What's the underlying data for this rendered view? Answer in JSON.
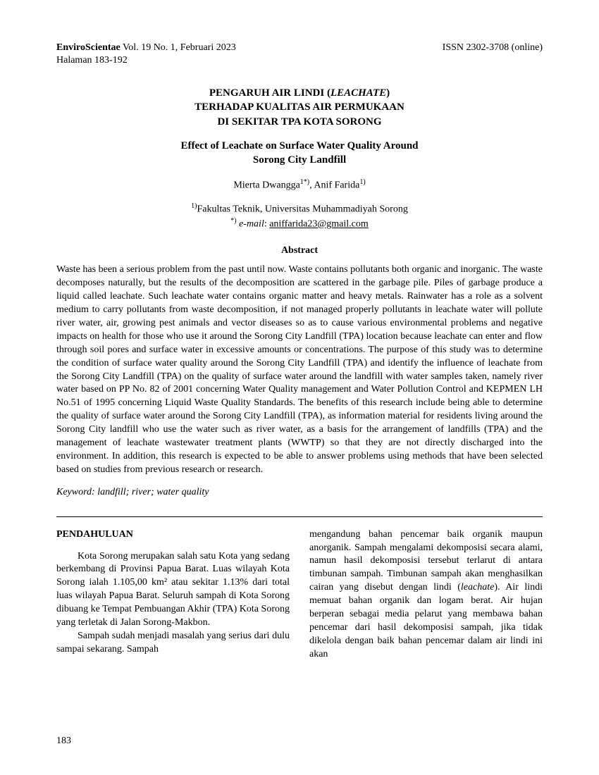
{
  "header": {
    "journal_bold": "EnviroScientae",
    "journal_rest": " Vol. 19 No. 1, Februari 2023",
    "issn": "ISSN 2302-3708 (online)",
    "pages": "Halaman 183-192"
  },
  "title": {
    "line1_a": "PENGARUH AIR LINDI (",
    "line1_b": "LEACHATE",
    "line1_c": ")",
    "line2": "TERHADAP KUALITAS AIR PERMUKAAN",
    "line3": "DI SEKITAR TPA KOTA SORONG",
    "sub1": "Effect of Leachate on Surface Water Quality Around",
    "sub2": "Sorong City Landfill"
  },
  "authors": {
    "a1": "Mierta Dwangga",
    "a1_sup": "1*)",
    "sep": ", ",
    "a2": "Anif Farida",
    "a2_sup": "1)"
  },
  "affiliation": {
    "sup": "1)",
    "text": "Fakultas Teknik, Universitas Muhammadiyah Sorong",
    "corr_sup": "*)",
    "email_label": " e-mail",
    "email_sep": ": ",
    "email": "aniffarida23@gmail.com"
  },
  "abstract": {
    "heading": "Abstract",
    "body": "Waste has been a serious problem from the past until now. Waste contains pollutants both organic and inorganic. The waste decomposes naturally, but the results of the decomposition are scattered in the garbage pile. Piles of garbage produce a liquid called leachate. Such leachate water contains organic matter and heavy metals. Rainwater has a role as a solvent medium to carry pollutants from waste decomposition, if not managed properly pollutants in leachate water will pollute river water, air, growing pest animals and vector diseases so as to cause various environmental problems and negative impacts on health for those who use it around the Sorong City Landfill (TPA) location because leachate can enter and flow through soil pores and surface water in excessive amounts or concentrations. The purpose of this study was to determine the condition of surface water quality around the Sorong City Landfill (TPA) and identify the influence of leachate from the Sorong City Landfill (TPA) on the quality of surface water around the landfill with water samples taken, namely river water based on PP No. 82 of 2001 concerning Water Quality management and Water Pollution Control and KEPMEN LH No.51 of 1995 concerning Liquid Waste Quality Standards. The benefits of this research include being able to determine the quality of surface water around the Sorong City Landfill (TPA), as information material for residents living around the Sorong City landfill who use the water such as river water, as a basis for the arrangement of landfills (TPA) and the management of leachate wastewater treatment plants (WWTP) so that they are not directly discharged into the environment. In addition, this research is expected to be able to answer problems using methods that have been selected based on studies from previous research or research."
  },
  "keywords": {
    "label": "Keyword: ",
    "text": "landfill; river; water quality"
  },
  "body": {
    "section_heading": "PENDAHULUAN",
    "col1_p1": "Kota Sorong merupakan salah satu Kota yang sedang berkembang di Provinsi Papua Barat. Luas wilayah Kota Sorong ialah 1.105,00 km² atau sekitar 1.13% dari total luas wilayah Papua Barat. Seluruh sampah di Kota Sorong dibuang ke Tempat Pembuangan Akhir (TPA) Kota Sorong yang terletak di Jalan Sorong-Makbon.",
    "col1_p2": "Sampah sudah menjadi masalah yang serius dari dulu sampai sekarang. Sampah",
    "col2_a": "mengandung bahan pencemar baik organik maupun anorganik. Sampah mengalami dekomposisi secara alami, namun hasil dekomposisi tersebut terlarut di antara timbunan sampah. Timbunan sampah akan menghasilkan cairan yang disebut dengan lindi (",
    "col2_italic": "leachate",
    "col2_b": "). Air lindi memuat bahan organik dan logam berat. Air hujan berperan sebagai media pelarut yang membawa bahan pencemar dari hasil dekomposisi sampah, jika tidak dikelola dengan baik bahan pencemar dalam air lindi ini akan"
  },
  "page_number": "183"
}
